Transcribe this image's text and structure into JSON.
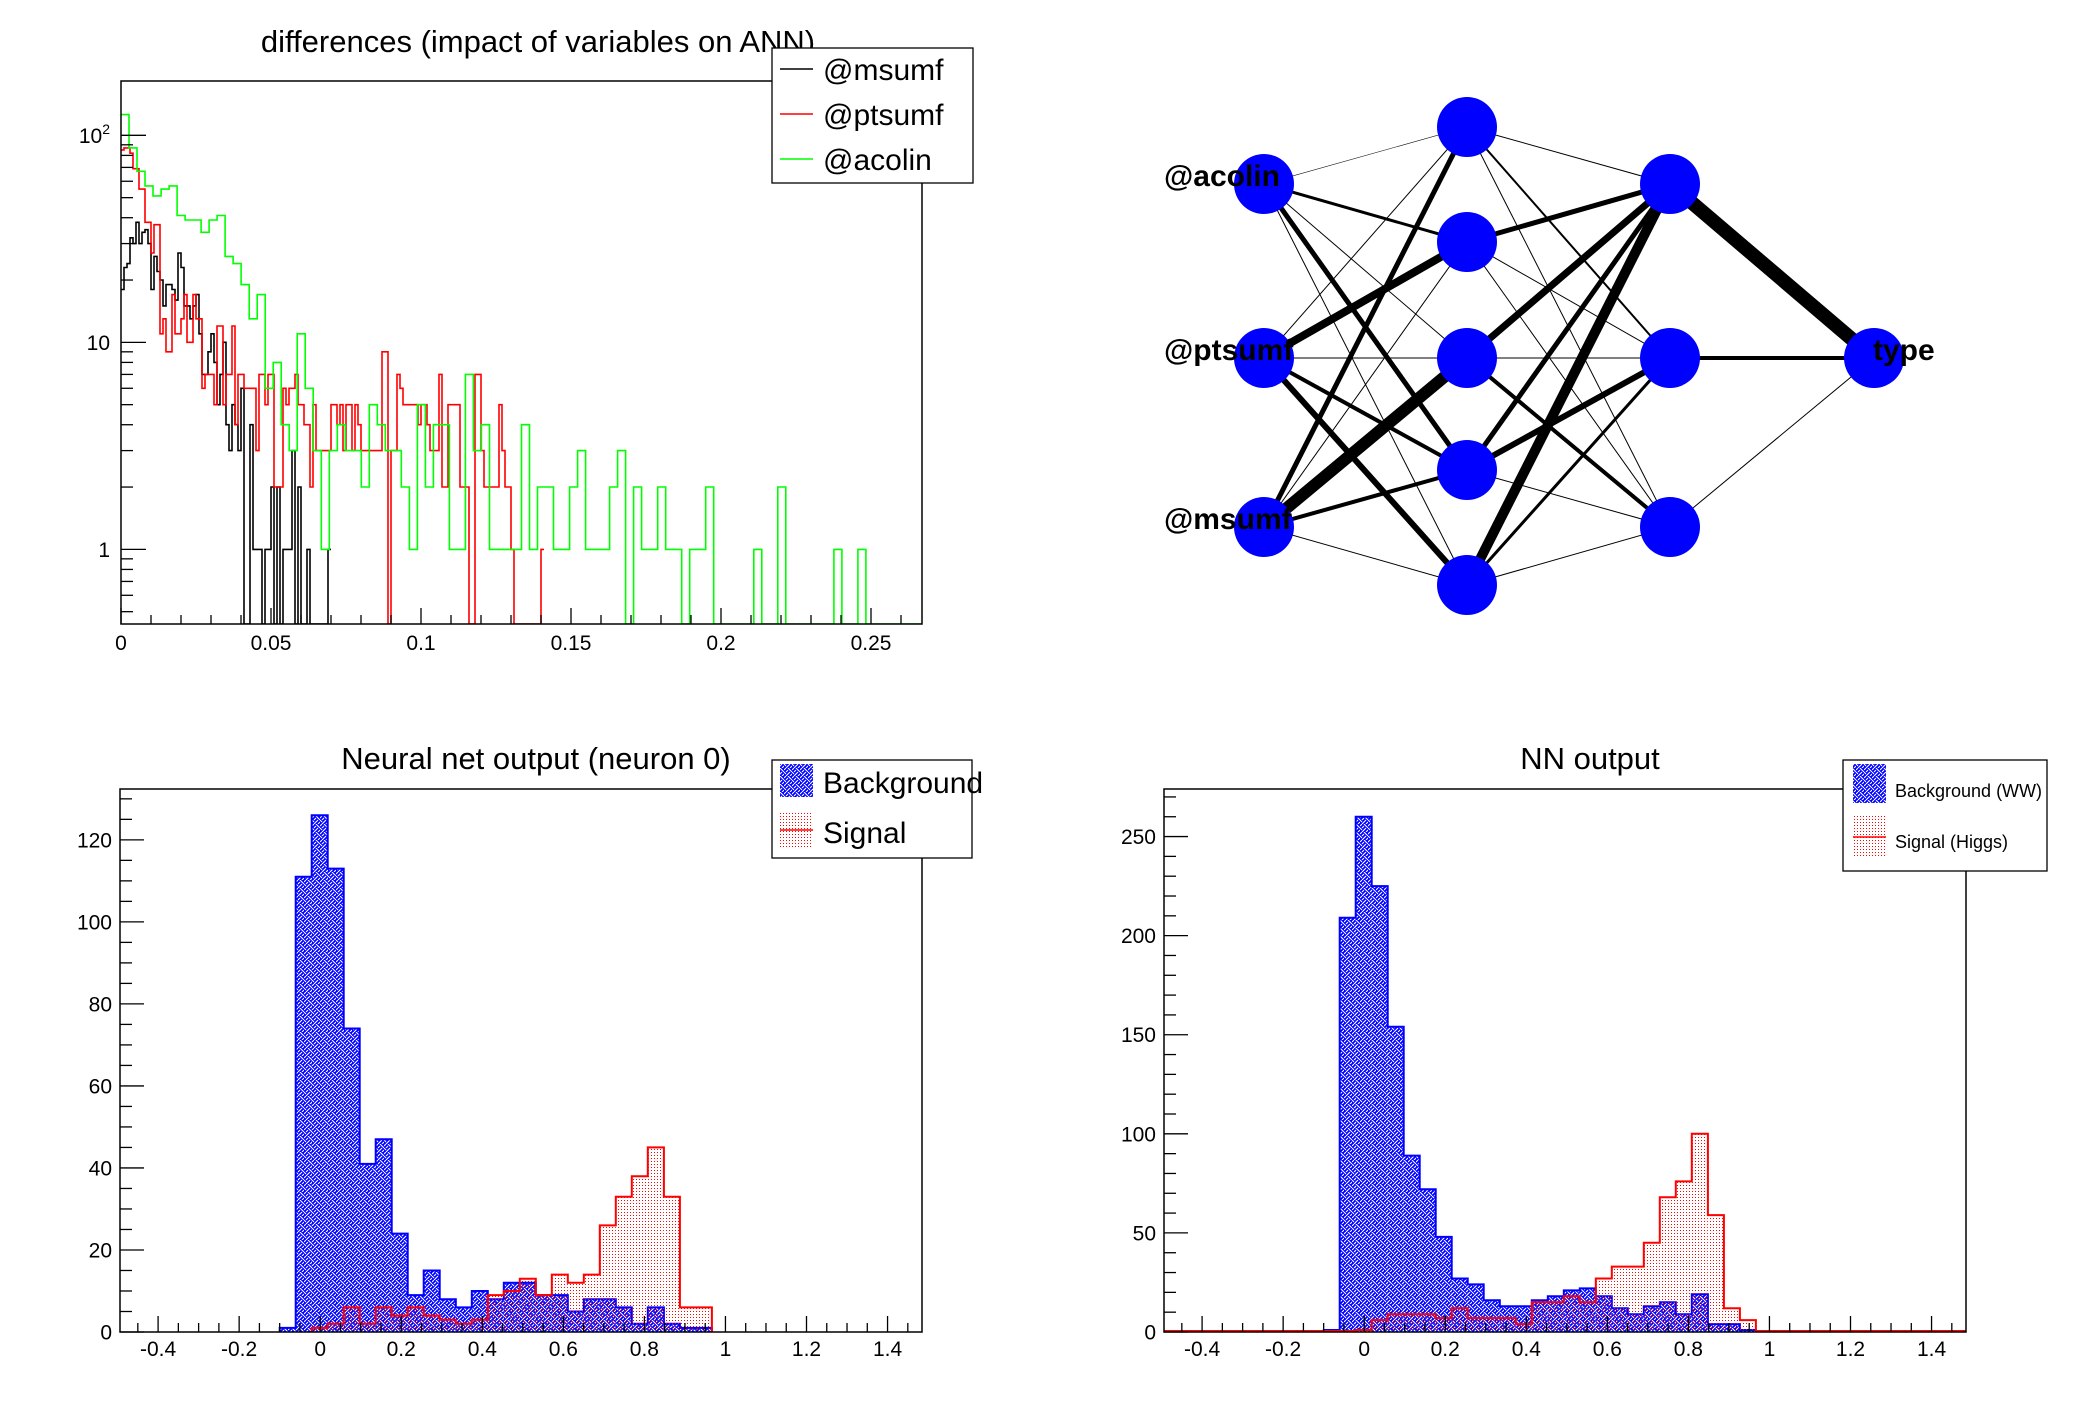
{
  "chart_data": [
    {
      "type": "histogram-step",
      "title": "differences (impact of variables on ANN)",
      "xlabel": "",
      "ylabel": "",
      "xlim": [
        0,
        0.267
      ],
      "ylim": [
        0.436,
        183
      ],
      "yscale": "log",
      "grid": false,
      "legend_position": "top-right",
      "xticks": [
        {
          "value": 0,
          "label": "0"
        },
        {
          "value": 0.05,
          "label": "0.05"
        },
        {
          "value": 0.1,
          "label": "0.1"
        },
        {
          "value": 0.15,
          "label": "0.15"
        },
        {
          "value": 0.2,
          "label": "0.2"
        },
        {
          "value": 0.25,
          "label": "0.25"
        }
      ],
      "yticks": [
        {
          "value": 1,
          "base": "1"
        },
        {
          "value": 10,
          "base": "10"
        },
        {
          "value": 100,
          "base": "10",
          "exp": "2"
        }
      ],
      "series": [
        {
          "name": "@msumf",
          "color": "#000000",
          "bin_start": 0,
          "bin_width": 0.001,
          "values": [
            18,
            23,
            24,
            32,
            30,
            38,
            30,
            34,
            35,
            30,
            18,
            26,
            22,
            20,
            15,
            19,
            19,
            18,
            16,
            27,
            23,
            15,
            15,
            13,
            15,
            17,
            11,
            7,
            7,
            9,
            11,
            8,
            5,
            7,
            10,
            4,
            3,
            5,
            4,
            3,
            6,
            0,
            0,
            4,
            1,
            1,
            1,
            0,
            1,
            1,
            2,
            0,
            2,
            0,
            1,
            1,
            1,
            3,
            0,
            2,
            0,
            0,
            1,
            0,
            0,
            0,
            0,
            0,
            0,
            1
          ]
        },
        {
          "name": "@ptsumf",
          "color": "#ff0000",
          "bin_start": 0,
          "bin_width": 0.001,
          "values": [
            85,
            87,
            87,
            82,
            69,
            69,
            55,
            55,
            38,
            38,
            27,
            37,
            37,
            11,
            13,
            9,
            9,
            17,
            11,
            11,
            13,
            17,
            10,
            10,
            17,
            13,
            13,
            6,
            7,
            7,
            7,
            5,
            12,
            12,
            5,
            7,
            7,
            12,
            4,
            7,
            7,
            6,
            6,
            6,
            6,
            3,
            7,
            7,
            5,
            7,
            7,
            2,
            2,
            2,
            6,
            5,
            6,
            6,
            7,
            5,
            5,
            4,
            4,
            2,
            5,
            3,
            3,
            3,
            3,
            3,
            5,
            5,
            4,
            5,
            3,
            5,
            5,
            3,
            5,
            4,
            3,
            3,
            3,
            3,
            3,
            3,
            3,
            9,
            9,
            0,
            3,
            3,
            7,
            6,
            5,
            5,
            5,
            5,
            5,
            4,
            5,
            5,
            4,
            3,
            3,
            3,
            7,
            2,
            2,
            5,
            5,
            5,
            5,
            2,
            2,
            2,
            0,
            0,
            7,
            7,
            3,
            2,
            2,
            2,
            2,
            2,
            5,
            3,
            2,
            2,
            1,
            0,
            0,
            0,
            0,
            0,
            0,
            0,
            0,
            0,
            1
          ]
        },
        {
          "name": "@acolin",
          "color": "#00ff00",
          "bin_start": 0,
          "bin_width": 0.00267,
          "values": [
            126,
            87,
            67,
            57,
            51,
            55,
            57,
            41,
            39,
            39,
            34,
            39,
            41,
            26,
            24,
            19,
            13,
            17,
            6,
            8,
            4,
            3,
            11,
            6,
            3,
            1,
            3,
            4,
            3,
            3,
            2,
            5,
            4,
            3,
            3,
            2,
            1,
            5,
            2,
            4,
            4,
            1,
            1,
            7,
            3,
            4,
            1,
            1,
            1,
            1,
            4,
            1,
            2,
            2,
            1,
            1,
            2,
            3,
            1,
            1,
            1,
            2,
            3,
            0,
            2,
            1,
            1,
            2,
            1,
            1,
            0,
            1,
            1,
            2,
            0,
            0,
            0,
            0,
            0,
            1,
            0,
            0,
            2,
            0,
            0,
            0,
            0,
            0,
            0,
            1,
            0,
            0,
            1,
            0,
            0,
            0,
            0,
            0,
            0,
            0
          ]
        }
      ]
    },
    {
      "type": "histogram",
      "title": "Neural net output (neuron 0)",
      "xlabel": "",
      "ylabel": "",
      "xlim": [
        -0.494,
        1.485
      ],
      "ylim": [
        0,
        132.4
      ],
      "yscale": "linear",
      "grid": false,
      "legend_position": "top-right",
      "xticks": [
        {
          "value": -0.4,
          "label": "-0.4"
        },
        {
          "value": -0.2,
          "label": "-0.2"
        },
        {
          "value": 0,
          "label": "0"
        },
        {
          "value": 0.2,
          "label": "0.2"
        },
        {
          "value": 0.4,
          "label": "0.4"
        },
        {
          "value": 0.6,
          "label": "0.6"
        },
        {
          "value": 0.8,
          "label": "0.8"
        },
        {
          "value": 1,
          "label": "1"
        },
        {
          "value": 1.2,
          "label": "1.2"
        },
        {
          "value": 1.4,
          "label": "1.4"
        }
      ],
      "yticks": [
        {
          "value": 0,
          "base": "0"
        },
        {
          "value": 20,
          "base": "20"
        },
        {
          "value": 40,
          "base": "40"
        },
        {
          "value": 60,
          "base": "60"
        },
        {
          "value": 80,
          "base": "80"
        },
        {
          "value": 100,
          "base": "100"
        },
        {
          "value": 120,
          "base": "120"
        }
      ],
      "series": [
        {
          "name": "Background",
          "color": "#0000ff",
          "fill": "crosshatch",
          "bin_start": -0.1,
          "bin_width": 0.0395,
          "values": [
            1,
            111,
            126,
            113,
            74,
            41,
            47,
            24,
            9,
            15,
            8,
            6,
            10,
            8,
            12,
            12,
            9,
            9,
            5,
            8,
            8,
            6,
            2,
            6,
            2,
            1,
            1
          ]
        },
        {
          "name": "Signal",
          "color": "#ff0000",
          "fill": "dots",
          "bin_start": -0.1,
          "bin_width": 0.0395,
          "values": [
            0,
            0,
            1,
            2,
            6,
            2,
            6,
            4,
            6,
            4,
            3,
            2,
            3,
            9,
            10,
            13,
            9,
            14,
            12,
            14,
            26,
            33,
            38,
            45,
            33,
            6,
            6
          ]
        }
      ]
    },
    {
      "type": "histogram",
      "title": "NN output",
      "xlabel": "",
      "ylabel": "",
      "xlim": [
        -0.494,
        1.485
      ],
      "ylim": [
        0,
        274
      ],
      "yscale": "linear",
      "grid": false,
      "legend_position": "top-right",
      "xticks": [
        {
          "value": -0.4,
          "label": "-0.4"
        },
        {
          "value": -0.2,
          "label": "-0.2"
        },
        {
          "value": 0,
          "label": "0"
        },
        {
          "value": 0.2,
          "label": "0.2"
        },
        {
          "value": 0.4,
          "label": "0.4"
        },
        {
          "value": 0.6,
          "label": "0.6"
        },
        {
          "value": 0.8,
          "label": "0.8"
        },
        {
          "value": 1,
          "label": "1"
        },
        {
          "value": 1.2,
          "label": "1.2"
        },
        {
          "value": 1.4,
          "label": "1.4"
        }
      ],
      "yticks": [
        {
          "value": 0,
          "base": "0"
        },
        {
          "value": 50,
          "base": "50"
        },
        {
          "value": 100,
          "base": "100"
        },
        {
          "value": 150,
          "base": "150"
        },
        {
          "value": 200,
          "base": "200"
        },
        {
          "value": 250,
          "base": "250"
        }
      ],
      "series": [
        {
          "name": "Background (WW)",
          "color": "#0000ff",
          "fill": "crosshatch",
          "bin_start": -0.1,
          "bin_width": 0.0395,
          "values": [
            1,
            209,
            260,
            225,
            154,
            89,
            72,
            48,
            27,
            24,
            16,
            13,
            13,
            16,
            18,
            21,
            22,
            18,
            12,
            9,
            13,
            15,
            9,
            19,
            4,
            4,
            1
          ]
        },
        {
          "name": "Signal (Higgs)",
          "color": "#ff0000",
          "fill": "dots",
          "bin_start": -0.1,
          "bin_width": 0.0395,
          "values": [
            0,
            0,
            1,
            6,
            9,
            9,
            9,
            7,
            12,
            7,
            7,
            7,
            4,
            15,
            15,
            18,
            15,
            27,
            33,
            33,
            45,
            68,
            76,
            100,
            59,
            12,
            6
          ]
        }
      ]
    }
  ],
  "network": {
    "input_labels": [
      "@acolin",
      "@ptsumf",
      "@msumf"
    ],
    "hidden_layer_sizes": [
      5,
      3
    ],
    "output_label": "type",
    "node_color": "#0000ff",
    "edge_color": "#000000",
    "weight_magnitude": {
      "input_to_hidden1": [
        [
          0.5,
          3,
          1,
          5,
          1
        ],
        [
          1,
          8,
          1,
          4,
          6
        ],
        [
          5,
          1,
          12,
          4,
          1
        ]
      ],
      "hidden1_to_hidden2": [
        [
          1,
          2,
          1
        ],
        [
          5,
          1,
          1
        ],
        [
          7,
          1,
          4
        ],
        [
          5,
          6,
          1
        ],
        [
          10,
          3,
          1
        ]
      ],
      "hidden2_to_output": [
        [
          14
        ],
        [
          4
        ],
        [
          1
        ]
      ]
    }
  }
}
